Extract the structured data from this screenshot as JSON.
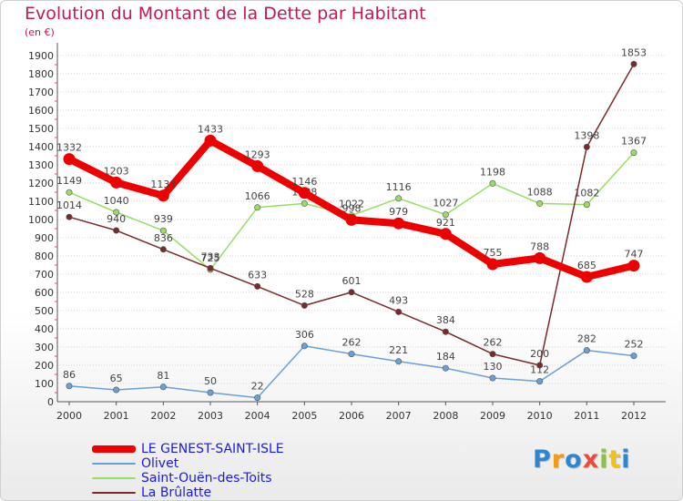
{
  "header": {
    "title": "Evolution du Montant de la Dette par Habitant",
    "subtitle": "(en €)"
  },
  "colors": {
    "title": "#c2185b",
    "legend_text": "#1a1ae6",
    "grid": "#cccccc"
  },
  "logo": {
    "letters": [
      {
        "ch": "P",
        "color": "#2e86d1"
      },
      {
        "ch": "r",
        "color": "#f39c12"
      },
      {
        "ch": "o",
        "color": "#2e86d1"
      },
      {
        "ch": "x",
        "color": "#e74c3c"
      },
      {
        "ch": "i",
        "color": "#8bc34a"
      },
      {
        "ch": "t",
        "color": "#f1c40f"
      },
      {
        "ch": "i",
        "color": "#2e86d1"
      }
    ]
  },
  "chart_data": {
    "type": "line",
    "title": "Evolution du Montant de la Dette par Habitant",
    "subtitle": "(en €)",
    "x": [
      "2000",
      "2001",
      "2002",
      "2003",
      "2004",
      "2005",
      "2006",
      "2007",
      "2008",
      "2009",
      "2010",
      "2011",
      "2012"
    ],
    "ylim": [
      0,
      1900
    ],
    "yticks": [
      0,
      100,
      200,
      300,
      400,
      500,
      600,
      700,
      800,
      900,
      1000,
      1100,
      1200,
      1300,
      1400,
      1500,
      1600,
      1700,
      1800,
      1900
    ],
    "grid": true,
    "legend_position": "bottom-left",
    "series": [
      {
        "name": "LE GENEST-SAINT-ISLE",
        "color": "#ee0000",
        "width": 8,
        "values": [
          1332,
          1203,
          1131,
          1433,
          1293,
          1146,
          998,
          979,
          921,
          755,
          788,
          685,
          747
        ]
      },
      {
        "name": "Olivet",
        "color": "#6aa0d8",
        "width": 1.5,
        "values": [
          86,
          65,
          81,
          50,
          22,
          306,
          262,
          221,
          184,
          130,
          112,
          282,
          252
        ]
      },
      {
        "name": "Saint-Ouën-des-Toits",
        "color": "#99dd66",
        "width": 1.5,
        "values": [
          1149,
          1040,
          939,
          725,
          1066,
          1088,
          1022,
          1116,
          1027,
          1198,
          1088,
          1082,
          1367
        ]
      },
      {
        "name": "La Brûlatte",
        "color": "#7a2a2a",
        "width": 1.5,
        "values": [
          1014,
          940,
          836,
          733,
          633,
          528,
          601,
          493,
          384,
          262,
          200,
          1398,
          1853
        ]
      }
    ]
  }
}
